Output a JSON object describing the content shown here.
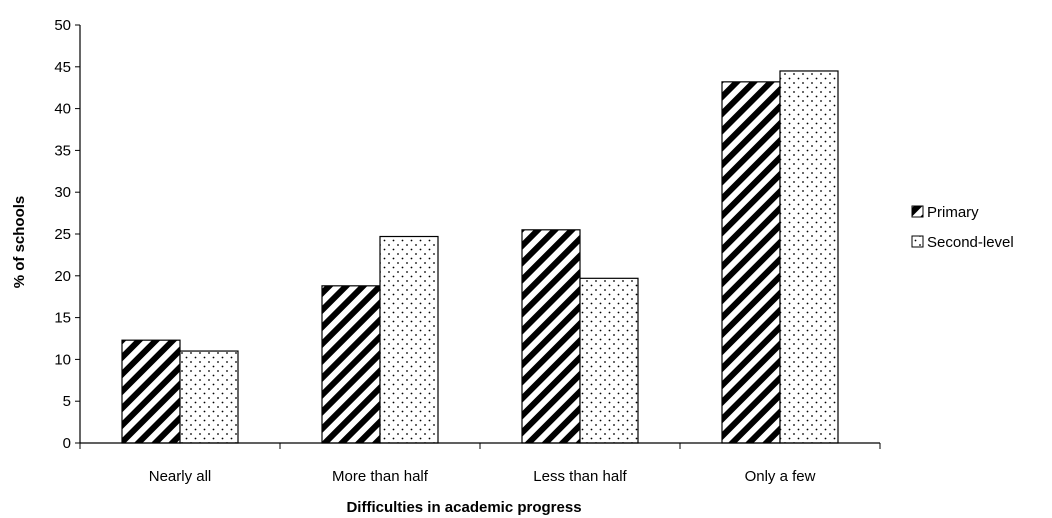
{
  "chart_data": {
    "type": "bar",
    "title": "",
    "xlabel": "Difficulties in academic progress",
    "ylabel": "% of schools",
    "ylim": [
      0,
      50
    ],
    "yticks": [
      0,
      5,
      10,
      15,
      20,
      25,
      30,
      35,
      40,
      45,
      50
    ],
    "grid": false,
    "legend_position": "right",
    "categories": [
      "Nearly all",
      "More than half",
      "Less than half",
      "Only a few"
    ],
    "series": [
      {
        "name": "Primary",
        "pattern": "diagonal-stripes",
        "values": [
          12.3,
          18.8,
          25.5,
          43.2
        ]
      },
      {
        "name": "Second-level",
        "pattern": "dots",
        "values": [
          11.0,
          24.7,
          19.7,
          44.5
        ]
      }
    ]
  }
}
